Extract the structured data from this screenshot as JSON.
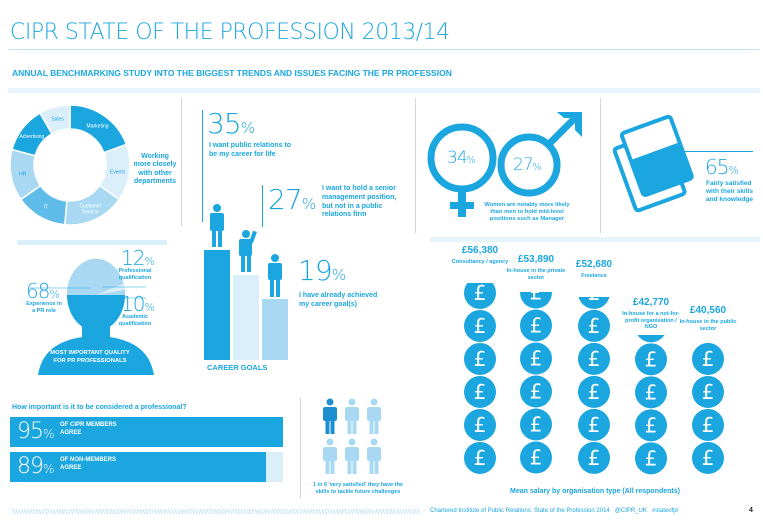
{
  "header": {
    "title": "CIPR STATE OF THE PROFESSION 2013/14",
    "subtitle": "ANNUAL BENCHMARKING STUDY INTO THE BIGGEST TRENDS AND ISSUES FACING THE PR PROFESSION"
  },
  "colors": {
    "primary": "#1ba6e0",
    "mid": "#5fbbe8",
    "light": "#a9d8f2",
    "pale": "#dbeffa"
  },
  "departments": {
    "caption": "Working more closely with other departments",
    "segments": [
      "Marketing",
      "Events",
      "Customer Service",
      "IT",
      "HR",
      "Advertising",
      "Sales"
    ]
  },
  "quality": {
    "title": "MOST IMPORTANT QUALITY FOR PR PROFESSIONALS",
    "items": [
      {
        "value": "68",
        "label": "Experience in a PR role"
      },
      {
        "value": "12",
        "label": "Professional qualification"
      },
      {
        "value": "10",
        "label": "Academic qualification"
      }
    ]
  },
  "career": {
    "title": "CAREER GOALS",
    "items": [
      {
        "value": "35",
        "label": "I want public relations to be my career for life"
      },
      {
        "value": "27",
        "label": "I want to hold a senior management position, but not in a public relations firm"
      },
      {
        "value": "19",
        "label": "I have already achieved my career goal(s)"
      }
    ]
  },
  "gender": {
    "women": "34",
    "men": "27",
    "caption": "Women are notably more likely than men to hold mid-level positions such as Manager"
  },
  "skills": {
    "value": "65",
    "label": "Fairly satisfied with their skills and knowledge"
  },
  "professional": {
    "question": "How important is it to be considered a professional?",
    "bars": [
      {
        "value": 95,
        "label": "OF CIPR MEMBERS AGREE"
      },
      {
        "value": 89,
        "label": "OF NON-MEMBERS AGREE"
      }
    ]
  },
  "future": {
    "caption": "1 in 6 'very satisfied' they have the skills to tackle future challenges",
    "ratio": "1/6"
  },
  "salary": {
    "title": "Mean salary by organisation type (All respondents)",
    "columns": [
      {
        "amount": "£56,380",
        "value": 56380,
        "label": "Consultancy / agency"
      },
      {
        "amount": "£53,890",
        "value": 53890,
        "label": "In-house in the private sector"
      },
      {
        "amount": "£52,680",
        "value": 52680,
        "label": "Freelance"
      },
      {
        "amount": "£42,770",
        "value": 42770,
        "label": "In-house for a not-for-profit organisation / NGO"
      },
      {
        "amount": "£40,560",
        "value": 40560,
        "label": "In-house in the public sector"
      }
    ],
    "coin_symbol": "£"
  },
  "footer": {
    "text": "Chartered Institute of Public Relations: State of the Profession 2014   @CIPR_UK   #stateofpr",
    "page": "4"
  }
}
